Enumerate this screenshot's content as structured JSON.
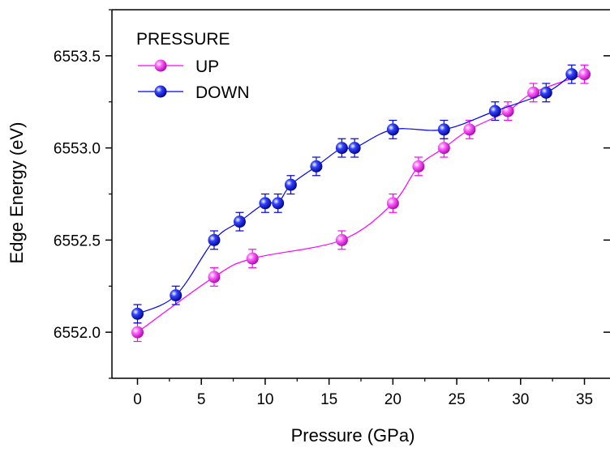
{
  "chart_data": {
    "type": "line",
    "xlabel": "Pressure (GPa)",
    "ylabel": "Edge Energy (eV)",
    "xlim": [
      -2,
      37
    ],
    "ylim": [
      6551.75,
      6553.75
    ],
    "x_ticks": [
      0,
      5,
      10,
      15,
      20,
      25,
      30,
      35
    ],
    "y_ticks": [
      6552.0,
      6552.5,
      6553.0,
      6553.5
    ],
    "y_tick_labels": [
      "6552.0",
      "6552.5",
      "6553.0",
      "6553.5"
    ],
    "grid": false,
    "legend": {
      "title": "PRESSURE",
      "position": "top-left"
    },
    "error_bar": 0.05,
    "series": [
      {
        "name": "UP",
        "color": "#ff00ff",
        "x": [
          0,
          6,
          9,
          16,
          20,
          22,
          24,
          26,
          29,
          31,
          35
        ],
        "y": [
          6552.0,
          6552.3,
          6552.4,
          6552.5,
          6552.7,
          6552.9,
          6553.0,
          6553.1,
          6553.2,
          6553.3,
          6553.4
        ]
      },
      {
        "name": "DOWN",
        "color": "#0000ee",
        "x": [
          0,
          3,
          6,
          8,
          10,
          11,
          12,
          14,
          16,
          17,
          20,
          24,
          28,
          32,
          34
        ],
        "y": [
          6552.1,
          6552.2,
          6552.5,
          6552.6,
          6552.7,
          6552.7,
          6552.8,
          6552.9,
          6553.0,
          6553.0,
          6553.1,
          6553.1,
          6553.2,
          6553.3,
          6553.4
        ]
      }
    ]
  }
}
